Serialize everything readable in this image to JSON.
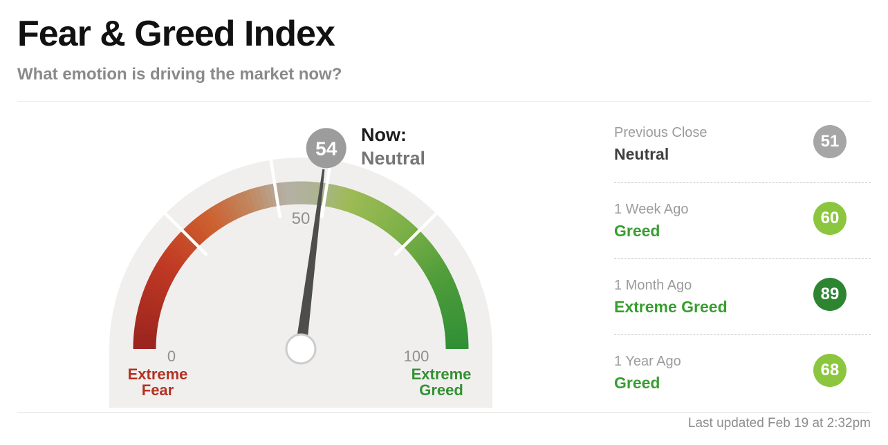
{
  "header": {
    "title": "Fear & Greed Index",
    "subtitle": "What emotion is driving the market now?"
  },
  "gauge": {
    "value": 54,
    "badge_value": "54",
    "now_label": "Now:",
    "now_mood": "Neutral",
    "tick_min": "0",
    "tick_mid": "50",
    "tick_max": "100",
    "left_caption_line1": "Extreme",
    "left_caption_line2": "Fear",
    "right_caption_line1": "Extreme",
    "right_caption_line2": "Greed",
    "left_caption_color": "#b23222",
    "right_caption_color": "#339133",
    "needle_color": "#4d4d4d",
    "badge_color": "#9c9c9c",
    "background_color": "#f0efee",
    "arc_color_stops": [
      [
        0,
        "#9a231e"
      ],
      [
        18,
        "#c03a24"
      ],
      [
        30,
        "#cd5e2e"
      ],
      [
        40,
        "#c08a63"
      ],
      [
        47,
        "#b5b0a6"
      ],
      [
        53,
        "#adb393"
      ],
      [
        60,
        "#9dbb55"
      ],
      [
        72,
        "#7fb148"
      ],
      [
        85,
        "#4f9c3a"
      ],
      [
        100,
        "#2f8f35"
      ]
    ],
    "segment_gaps": [
      25,
      45,
      55,
      75
    ]
  },
  "history": [
    {
      "label": "Previous Close",
      "mood": "Neutral",
      "value": "51",
      "mood_color": "#3f3f3f",
      "circle_color": "#a6a6a6"
    },
    {
      "label": "1 Week Ago",
      "mood": "Greed",
      "value": "60",
      "mood_color": "#389e30",
      "circle_color": "#8cc63f"
    },
    {
      "label": "1 Month Ago",
      "mood": "Extreme Greed",
      "value": "89",
      "mood_color": "#389e30",
      "circle_color": "#2d8532"
    },
    {
      "label": "1 Year Ago",
      "mood": "Greed",
      "value": "68",
      "mood_color": "#389e30",
      "circle_color": "#8cc63f"
    }
  ],
  "footer": {
    "last_updated": "Last updated Feb 19 at 2:32pm"
  },
  "chart_data": {
    "type": "gauge",
    "title": "Fear & Greed Index",
    "subtitle": "What emotion is driving the market now?",
    "value": 54,
    "value_label": "Neutral",
    "range": [
      0,
      100
    ],
    "tick_labels": [
      0,
      50,
      100
    ],
    "segment_boundaries": [
      0,
      25,
      45,
      55,
      75,
      100
    ],
    "scale_captions": {
      "low": "Extreme Fear",
      "high": "Extreme Greed"
    },
    "history": [
      {
        "period": "Previous Close",
        "label": "Neutral",
        "value": 51
      },
      {
        "period": "1 Week Ago",
        "label": "Greed",
        "value": 60
      },
      {
        "period": "1 Month Ago",
        "label": "Extreme Greed",
        "value": 89
      },
      {
        "period": "1 Year Ago",
        "label": "Greed",
        "value": 68
      }
    ],
    "last_updated": "Last updated Feb 19 at 2:32pm"
  }
}
